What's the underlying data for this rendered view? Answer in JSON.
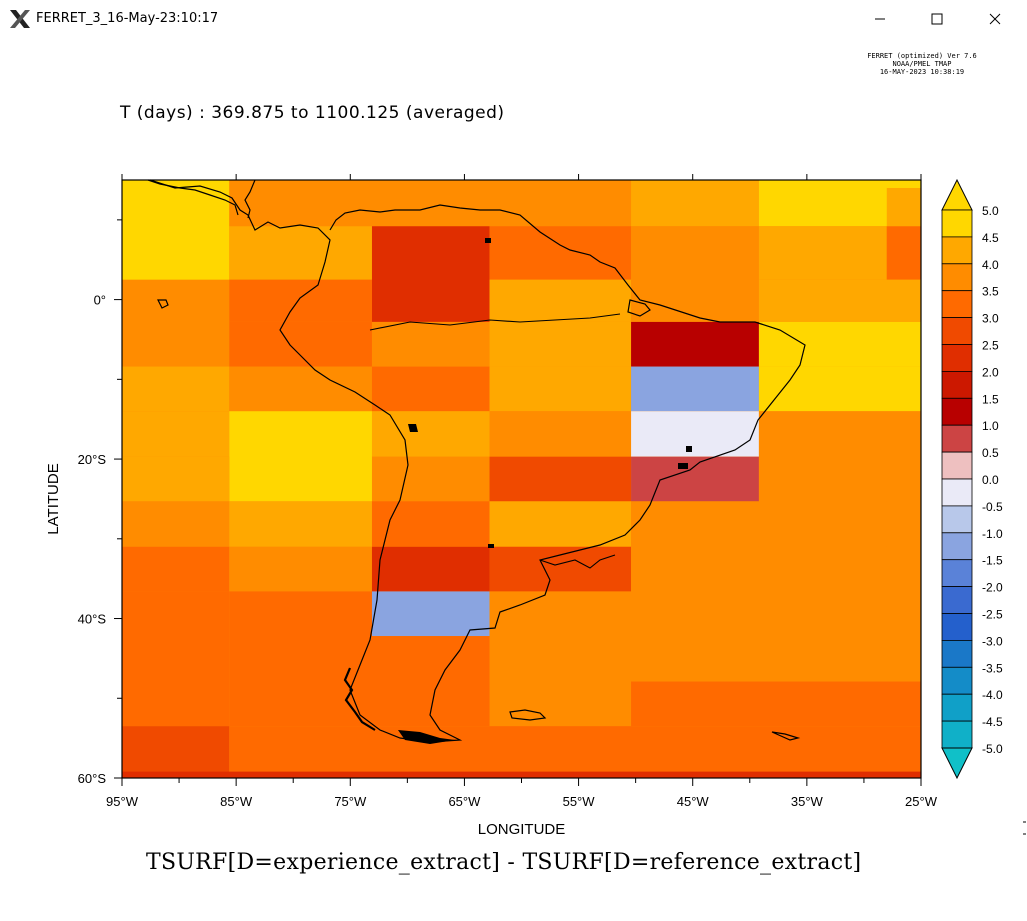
{
  "window": {
    "title": "FERRET_3_16-May-23:10:17",
    "minimize_icon": "minimize-icon",
    "maximize_icon": "maximize-icon",
    "close_icon": "close-icon"
  },
  "stamp": {
    "line1": "FERRET (optimized) Ver 7.6",
    "line2": "NOAA/PMEL TMAP",
    "line3": "16-MAY-2023 10:38:19"
  },
  "plot": {
    "subtitle": "T (days) : 369.875 to 1100.125 (averaged)",
    "bottom_title": "TSURF[D=experience_extract] - TSURF[D=reference_extract]",
    "xlabel": "LONGITUDE",
    "ylabel": "LATITUDE"
  },
  "chart_data": {
    "type": "heatmap",
    "xlabel": "LONGITUDE",
    "ylabel": "LATITUDE",
    "xlim": [
      -95,
      -25
    ],
    "ylim": [
      -60,
      15
    ],
    "x_ticks": [
      -95,
      -85,
      -75,
      -65,
      -55,
      -45,
      -35,
      -25
    ],
    "x_tick_labels": [
      "95°W",
      "85°W",
      "75°W",
      "65°W",
      "55°W",
      "45°W",
      "35°W",
      "25°W"
    ],
    "y_ticks": [
      0,
      -20,
      -40,
      -60
    ],
    "y_tick_labels": [
      "0°",
      "20°S",
      "40°S",
      "60°S"
    ],
    "colorbar": {
      "levels": [
        5.0,
        4.5,
        4.0,
        3.5,
        3.0,
        2.5,
        2.0,
        1.5,
        1.0,
        0.5,
        0.0,
        -0.5,
        -1.0,
        -1.5,
        -2.0,
        -2.5,
        -3.0,
        -3.5,
        -4.0,
        -4.5,
        -5.0
      ],
      "labels": [
        "5.0",
        "4.5",
        "4.0",
        "3.5",
        "3.0",
        "2.5",
        "2.0",
        "1.5",
        "1.0",
        "0.5",
        "0.0",
        "-0.5",
        "-1.0",
        "-1.5",
        "-2.0",
        "-2.5",
        "-3.0",
        "-3.5",
        "-4.0",
        "-4.5",
        "-5.0"
      ],
      "colors": [
        "#ffd700",
        "#ffa800",
        "#ff8c00",
        "#ff6a00",
        "#f04a00",
        "#e02e00",
        "#cc1800",
        "#b80000",
        "#cc4444",
        "#eec0c0",
        "#eaeaf7",
        "#b8c8ea",
        "#8aa4e0",
        "#5a82d8",
        "#3a6ad0",
        "#2460cc",
        "#1a78c8",
        "#148cc8",
        "#10a0c8",
        "#10b0c8",
        "#10c0c8"
      ],
      "extend": "both"
    },
    "cells": [
      {
        "lon0": -95,
        "lon1": -85.6,
        "lat0": 15,
        "lat1": 2.5,
        "value": 4.8
      },
      {
        "lon0": -85.6,
        "lon1": -73.1,
        "lat0": 15,
        "lat1": 9.2,
        "value": 4.1
      },
      {
        "lon0": -85.6,
        "lon1": -73.1,
        "lat0": 9.2,
        "lat1": 2.5,
        "value": 4.3
      },
      {
        "lon0": -73.1,
        "lon1": -62.8,
        "lat0": 15,
        "lat1": 9.2,
        "value": 3.8
      },
      {
        "lon0": -73.1,
        "lon1": -62.8,
        "lat0": 9.2,
        "lat1": -2.8,
        "value": 2.7
      },
      {
        "lon0": -62.8,
        "lon1": -50.4,
        "lat0": 15,
        "lat1": 9.2,
        "value": 4.1
      },
      {
        "lon0": -62.8,
        "lon1": -50.4,
        "lat0": 9.2,
        "lat1": 2.5,
        "value": 3.6
      },
      {
        "lon0": -50.4,
        "lon1": -39.2,
        "lat0": 15,
        "lat1": 9.2,
        "value": 4.6
      },
      {
        "lon0": -50.4,
        "lon1": -39.2,
        "lat0": 9.2,
        "lat1": 2.5,
        "value": 4.2
      },
      {
        "lon0": -39.2,
        "lon1": -25,
        "lat0": 15,
        "lat1": 9.2,
        "value": 4.9
      },
      {
        "lon0": -28,
        "lon1": -25,
        "lat0": 14,
        "lat1": 9.2,
        "value": 4.6
      },
      {
        "lon0": -39.2,
        "lon1": -28,
        "lat0": 9.2,
        "lat1": 2.5,
        "value": 4.6
      },
      {
        "lon0": -28,
        "lon1": -25,
        "lat0": 9.2,
        "lat1": 2.5,
        "value": 3.6
      },
      {
        "lon0": -85.6,
        "lon1": -73.1,
        "lat0": 2.5,
        "lat1": -2.8,
        "value": 3.6
      },
      {
        "lon0": -62.8,
        "lon1": -50.4,
        "lat0": 2.5,
        "lat1": -2.8,
        "value": 4.4
      },
      {
        "lon0": -50.4,
        "lon1": -39.2,
        "lat0": 2.5,
        "lat1": -2.8,
        "value": 3.8
      },
      {
        "lon0": -39.2,
        "lon1": -25,
        "lat0": 2.5,
        "lat1": -2.8,
        "value": 4.3
      },
      {
        "lon0": -95,
        "lon1": -85.6,
        "lat0": -2.8,
        "lat1": -8.4,
        "value": 4.1
      },
      {
        "lon0": -85.6,
        "lon1": -73.1,
        "lat0": -2.8,
        "lat1": -8.4,
        "value": 3.3
      },
      {
        "lon0": -73.1,
        "lon1": -62.8,
        "lat0": -2.8,
        "lat1": -8.4,
        "value": 3.8
      },
      {
        "lon0": -62.8,
        "lon1": -50.4,
        "lat0": -2.8,
        "lat1": -8.4,
        "value": 4.4
      },
      {
        "lon0": -50.4,
        "lon1": -39.2,
        "lat0": -2.8,
        "lat1": -8.4,
        "value": 1.3
      },
      {
        "lon0": -39.2,
        "lon1": -25,
        "lat0": -2.8,
        "lat1": -8.4,
        "value": 4.8
      },
      {
        "lon0": -95,
        "lon1": -85.6,
        "lat0": -8.4,
        "lat1": -14,
        "value": 4.4
      },
      {
        "lon0": -85.6,
        "lon1": -73.1,
        "lat0": -8.4,
        "lat1": -14,
        "value": 4.2
      },
      {
        "lon0": -73.1,
        "lon1": -62.8,
        "lat0": -8.4,
        "lat1": -14,
        "value": 3.3
      },
      {
        "lon0": -62.8,
        "lon1": -50.4,
        "lat0": -8.4,
        "lat1": -14,
        "value": 4.4
      },
      {
        "lon0": -50.4,
        "lon1": -39.2,
        "lat0": -8.4,
        "lat1": -14,
        "value": -0.8
      },
      {
        "lon0": -39.2,
        "lon1": -25,
        "lat0": -8.4,
        "lat1": -14,
        "value": 4.8
      },
      {
        "lon0": -95,
        "lon1": -85.6,
        "lat0": -14,
        "lat1": -19.7,
        "value": 4.4
      },
      {
        "lon0": -85.6,
        "lon1": -73.1,
        "lat0": -14,
        "lat1": -25.3,
        "value": 4.9
      },
      {
        "lon0": -73.1,
        "lon1": -62.8,
        "lat0": -14,
        "lat1": -19.7,
        "value": 4.5
      },
      {
        "lon0": -62.8,
        "lon1": -50.4,
        "lat0": -14,
        "lat1": -19.7,
        "value": 3.8
      },
      {
        "lon0": -50.4,
        "lon1": -39.2,
        "lat0": -14,
        "lat1": -19.7,
        "value": -0.2
      },
      {
        "lon0": -39.2,
        "lon1": -25,
        "lat0": -14,
        "lat1": -19.7,
        "value": 4.2
      },
      {
        "lon0": -95,
        "lon1": -85.6,
        "lat0": -19.7,
        "lat1": -25.3,
        "value": 4.4
      },
      {
        "lon0": -73.1,
        "lon1": -62.8,
        "lat0": -19.7,
        "lat1": -25.3,
        "value": 4.2
      },
      {
        "lon0": -62.8,
        "lon1": -50.4,
        "lat0": -19.7,
        "lat1": -25.3,
        "value": 2.8
      },
      {
        "lon0": -50.4,
        "lon1": -39.2,
        "lat0": -19.7,
        "lat1": -25.3,
        "value": 0.8
      },
      {
        "lon0": -39.2,
        "lon1": -25,
        "lat0": -19.7,
        "lat1": -25.3,
        "value": 3.8
      },
      {
        "lon0": -95,
        "lon1": -85.6,
        "lat0": -25.3,
        "lat1": -31,
        "value": 4.2
      },
      {
        "lon0": -85.6,
        "lon1": -73.1,
        "lat0": -25.3,
        "lat1": -31,
        "value": 4.4
      },
      {
        "lon0": -73.1,
        "lon1": -62.8,
        "lat0": -25.3,
        "lat1": -31,
        "value": 3.3
      },
      {
        "lon0": -62.8,
        "lon1": -50.4,
        "lat0": -25.3,
        "lat1": -31,
        "value": 4.4
      },
      {
        "lon0": -50.4,
        "lon1": -39.2,
        "lat0": -25.3,
        "lat1": -31,
        "value": 3.8
      },
      {
        "lon0": -39.2,
        "lon1": -28,
        "lat0": -25.3,
        "lat1": -31,
        "value": 4.2
      },
      {
        "lon0": -28,
        "lon1": -25,
        "lat0": -25.3,
        "lat1": -31,
        "value": 3.8
      },
      {
        "lon0": -95,
        "lon1": -85.6,
        "lat0": -31,
        "lat1": -36.6,
        "value": 3.4
      },
      {
        "lon0": -85.6,
        "lon1": -73.1,
        "lat0": -31,
        "lat1": -36.6,
        "value": 3.8
      },
      {
        "lon0": -73.1,
        "lon1": -62.8,
        "lat0": -31,
        "lat1": -36.6,
        "value": 2.3
      },
      {
        "lon0": -62.8,
        "lon1": -50.4,
        "lat0": -31,
        "lat1": -36.6,
        "value": 2.8
      },
      {
        "lon0": -50.4,
        "lon1": -28,
        "lat0": -31,
        "lat1": -42.2,
        "value": 4.2
      },
      {
        "lon0": -28,
        "lon1": -25,
        "lat0": -31,
        "lat1": -42.2,
        "value": 3.8
      },
      {
        "lon0": -95,
        "lon1": -85.6,
        "lat0": -36.6,
        "lat1": -53.5,
        "value": 3.3
      },
      {
        "lon0": -85.6,
        "lon1": -73.1,
        "lat0": -36.6,
        "lat1": -53.5,
        "value": 3.4
      },
      {
        "lon0": -73.1,
        "lon1": -62.8,
        "lat0": -36.6,
        "lat1": -42.2,
        "value": -0.8
      },
      {
        "lon0": -62.8,
        "lon1": -50.4,
        "lat0": -36.6,
        "lat1": -42.2,
        "value": 4.2
      },
      {
        "lon0": -73.1,
        "lon1": -62.8,
        "lat0": -42.2,
        "lat1": -47.9,
        "value": 3.3
      },
      {
        "lon0": -62.8,
        "lon1": -50.4,
        "lat0": -42.2,
        "lat1": -53.5,
        "value": 4.2
      },
      {
        "lon0": -50.4,
        "lon1": -25,
        "lat0": -42.2,
        "lat1": -47.9,
        "value": 3.8
      },
      {
        "lon0": -73.1,
        "lon1": -62.8,
        "lat0": -47.9,
        "lat1": -53.5,
        "value": 3.3
      },
      {
        "lon0": -50.4,
        "lon1": -25,
        "lat0": -47.9,
        "lat1": -53.5,
        "value": 3.4
      },
      {
        "lon0": -95,
        "lon1": -85.6,
        "lat0": -53.5,
        "lat1": -60,
        "value": 2.8
      },
      {
        "lon0": -85.6,
        "lon1": -25,
        "lat0": -53.5,
        "lat1": -60,
        "value": 3.3
      },
      {
        "lon0": -95,
        "lon1": -25,
        "lat0": -59.2,
        "lat1": -60,
        "value": 2.6
      }
    ],
    "grid": false
  }
}
